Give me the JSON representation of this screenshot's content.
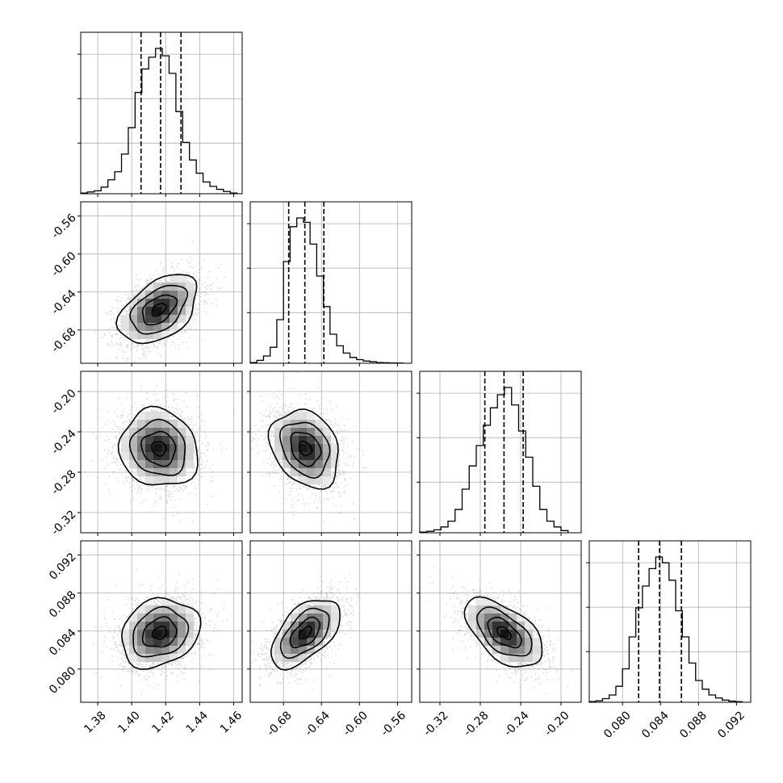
{
  "chart_data": {
    "type": "corner",
    "title": "",
    "xlabel": "",
    "ylabel": "",
    "grid": true,
    "parameters": [
      {
        "range": [
          1.37,
          1.465
        ],
        "ticks": [
          "1.38",
          "1.40",
          "1.42",
          "1.44",
          "1.46"
        ],
        "tick_values": [
          1.38,
          1.4,
          1.42,
          1.44,
          1.46
        ],
        "quantiles": [
          1.4055,
          1.417,
          1.429
        ],
        "hist_bins": [
          1.37,
          1.374,
          1.378,
          1.382,
          1.386,
          1.39,
          1.394,
          1.398,
          1.402,
          1.406,
          1.41,
          1.414,
          1.418,
          1.422,
          1.426,
          1.43,
          1.434,
          1.438,
          1.442,
          1.446,
          1.45,
          1.454,
          1.458,
          1.462
        ],
        "hist_values": [
          0.5,
          1.2,
          2,
          4.5,
          9.5,
          15,
          27,
          45,
          69,
          85,
          93,
          99,
          94,
          82,
          56,
          35,
          23,
          14,
          8,
          5,
          3,
          1.5,
          0.5
        ]
      },
      {
        "range": [
          -0.715,
          -0.545
        ],
        "ticks": [
          "-0.68",
          "-0.64",
          "-0.60",
          "-0.56"
        ],
        "tick_values": [
          -0.68,
          -0.64,
          -0.6,
          -0.56
        ],
        "quantiles": [
          -0.6745,
          -0.6575,
          -0.6375
        ],
        "hist_bins": [
          -0.715,
          -0.708,
          -0.701,
          -0.694,
          -0.687,
          -0.68,
          -0.673,
          -0.666,
          -0.659,
          -0.652,
          -0.645,
          -0.638,
          -0.631,
          -0.624,
          -0.617,
          -0.61,
          -0.603,
          -0.596,
          -0.589,
          -0.582,
          -0.575,
          -0.568,
          -0.561,
          -0.554
        ],
        "hist_values": [
          0.5,
          2,
          5,
          11,
          30,
          70,
          94,
          100,
          97,
          82,
          60,
          39,
          20,
          12,
          7,
          4,
          2.5,
          1.5,
          1,
          0.5,
          0.3,
          0.2,
          0.1
        ]
      },
      {
        "range": [
          -0.34,
          -0.18
        ],
        "ticks": [
          "-0.32",
          "-0.28",
          "-0.24",
          "-0.20"
        ],
        "tick_values": [
          -0.32,
          -0.28,
          -0.24,
          -0.2
        ],
        "quantiles": [
          -0.2755,
          -0.2565,
          -0.2375
        ],
        "hist_bins": [
          -0.34,
          -0.333,
          -0.326,
          -0.319,
          -0.312,
          -0.305,
          -0.298,
          -0.291,
          -0.284,
          -0.277,
          -0.27,
          -0.263,
          -0.256,
          -0.249,
          -0.242,
          -0.235,
          -0.228,
          -0.221,
          -0.214,
          -0.207,
          -0.2,
          -0.193
        ],
        "hist_values": [
          0.5,
          1,
          2,
          4,
          8,
          16,
          30,
          46,
          60,
          74,
          86,
          95,
          100,
          88,
          70,
          52,
          32,
          16,
          8,
          4,
          1.5
        ]
      },
      {
        "range": [
          0.0765,
          0.0935
        ],
        "ticks": [
          "0.080",
          "0.084",
          "0.088",
          "0.092"
        ],
        "tick_values": [
          0.08,
          0.084,
          0.088,
          0.092
        ],
        "quantiles": [
          0.0817,
          0.0839,
          0.0862
        ],
        "hist_bins": [
          0.0765,
          0.0772,
          0.0779,
          0.0786,
          0.0793,
          0.08,
          0.0807,
          0.0814,
          0.0821,
          0.0828,
          0.0835,
          0.0842,
          0.0849,
          0.0856,
          0.0863,
          0.087,
          0.0877,
          0.0884,
          0.0891,
          0.0898,
          0.0905,
          0.0912,
          0.0919,
          0.0926
        ],
        "hist_values": [
          0.5,
          1,
          2.5,
          5,
          11,
          23,
          45,
          65,
          80,
          92,
          100,
          96,
          84,
          63,
          45,
          27,
          15,
          9,
          5,
          3,
          1.5,
          0.8,
          0.4
        ]
      }
    ],
    "pairs": [
      {
        "x": 0,
        "y": 1,
        "center": [
          1.416,
          -0.6585
        ],
        "sigma": [
          0.0105,
          0.0165
        ],
        "rho": 0.45
      },
      {
        "x": 0,
        "y": 2,
        "center": [
          1.416,
          -0.2565
        ],
        "sigma": [
          0.0105,
          0.0175
        ],
        "rho": -0.1
      },
      {
        "x": 1,
        "y": 2,
        "center": [
          -0.657,
          -0.2565
        ],
        "sigma": [
          0.0165,
          0.0175
        ],
        "rho": -0.25
      },
      {
        "x": 0,
        "y": 3,
        "center": [
          1.4165,
          0.0838
        ],
        "sigma": [
          0.0105,
          0.00165
        ],
        "rho": 0.2
      },
      {
        "x": 1,
        "y": 3,
        "center": [
          -0.657,
          0.0838
        ],
        "sigma": [
          0.0165,
          0.00165
        ],
        "rho": 0.55
      },
      {
        "x": 2,
        "y": 3,
        "center": [
          -0.2565,
          0.0838
        ],
        "sigma": [
          0.0175,
          0.00165
        ],
        "rho": -0.55
      }
    ]
  }
}
